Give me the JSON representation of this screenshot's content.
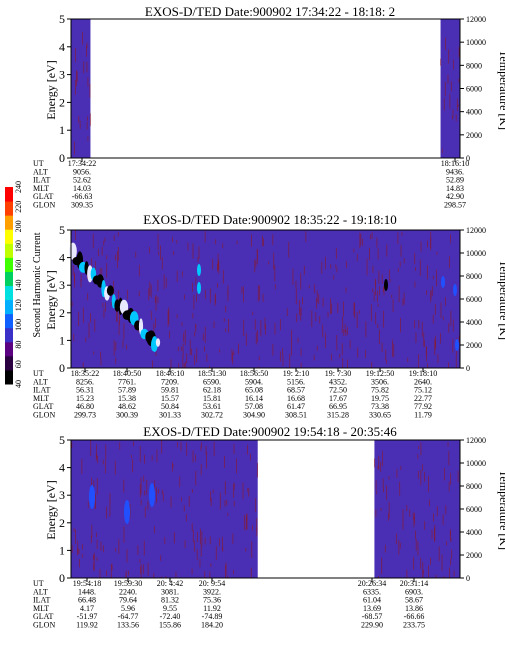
{
  "colors": {
    "background": "#4a2fb4",
    "noise": "#8b1a2a",
    "axis": "#000000",
    "frame_text": "#000000"
  },
  "colorbar": {
    "label": "Second Harmonic Current",
    "ticks": [
      "40",
      "60",
      "80",
      "100",
      "120",
      "140",
      "160",
      "180",
      "200",
      "220",
      "240"
    ],
    "colors": [
      "#000000",
      "#2a0040",
      "#5a0080",
      "#3a30c8",
      "#1060ff",
      "#00b0ff",
      "#00e0e0",
      "#00d060",
      "#40ff00",
      "#c0ff00",
      "#ffff00",
      "#ffa000",
      "#ff4000",
      "#ff0000"
    ]
  },
  "rowlabels": [
    "UT",
    "ALT",
    "ILAT",
    "MLT",
    "GLAT",
    "GLON"
  ],
  "chart_data": [
    {
      "type": "heatmap",
      "title": "EXOS-D/TED   Date:900902  17:34:22 - 18:18: 2",
      "ylabel": "Energy [eV]",
      "ylabel2": "Temperature [K]",
      "ylim": [
        0,
        5
      ],
      "yticks": [
        "0",
        "1",
        "2",
        "3",
        "4",
        "5"
      ],
      "y2lim": [
        0,
        12000
      ],
      "y2ticks": [
        "0",
        "2000",
        "4000",
        "6000",
        "8000",
        "10000",
        "12000"
      ],
      "data_segments": [
        [
          0,
          0.05
        ],
        [
          0.95,
          1.0
        ]
      ],
      "ephemeris": [
        {
          "UT": "17:34:22",
          "ALT": "9056.",
          "ILAT": "52.62",
          "MLT": "14.03",
          "GLAT": "-66.63",
          "GLON": "309.35"
        },
        {
          "UT": "18:16:10",
          "ALT": "9436.",
          "ILAT": "52.89",
          "MLT": "14.83",
          "GLAT": "42.90",
          "GLON": "298.57"
        }
      ]
    },
    {
      "type": "heatmap",
      "title": "EXOS-D/TED   Date:900902  18:35:22 - 19:18:10",
      "ylabel": "Energy [eV]",
      "ylabel2": "Temperature [K]",
      "ylim": [
        0,
        5
      ],
      "yticks": [
        "0",
        "1",
        "2",
        "3",
        "4",
        "5"
      ],
      "y2lim": [
        0,
        12000
      ],
      "y2ticks": [
        "0",
        "2000",
        "4000",
        "6000",
        "8000",
        "10000",
        "12000"
      ],
      "data_segments": [
        [
          0,
          1.0
        ]
      ],
      "ephemeris": [
        {
          "UT": "18:35:22",
          "ALT": "8256.",
          "ILAT": "56.31",
          "MLT": "15.23",
          "GLAT": "46.80",
          "GLON": "299.73"
        },
        {
          "UT": "18:40:50",
          "ALT": "7761.",
          "ILAT": "57.89",
          "MLT": "15.38",
          "GLAT": "48.62",
          "GLON": "300.39"
        },
        {
          "UT": "18:46:10",
          "ALT": "7209.",
          "ILAT": "59.81",
          "MLT": "15.57",
          "GLAT": "50.84",
          "GLON": "301.33"
        },
        {
          "UT": "18:51:30",
          "ALT": "6590.",
          "ILAT": "62.18",
          "MLT": "15.81",
          "GLAT": "53.61",
          "GLON": "302.72"
        },
        {
          "UT": "18:56:50",
          "ALT": "5904.",
          "ILAT": "65.08",
          "MLT": "16.14",
          "GLAT": "57.08",
          "GLON": "304.90"
        },
        {
          "UT": "19: 2:10",
          "ALT": "5156.",
          "ILAT": "68.57",
          "MLT": "16.68",
          "GLAT": "61.47",
          "GLON": "308.51"
        },
        {
          "UT": "19: 7:30",
          "ALT": "4352.",
          "ILAT": "72.50",
          "MLT": "17.67",
          "GLAT": "66.95",
          "GLON": "315.28"
        },
        {
          "UT": "19:12:50",
          "ALT": "3506.",
          "ILAT": "75.82",
          "MLT": "19.75",
          "GLAT": "73.38",
          "GLON": "330.65"
        },
        {
          "UT": "19:18:10",
          "ALT": "2640.",
          "ILAT": "75.12",
          "MLT": "22.77",
          "GLAT": "77.92",
          "GLON": "11.79"
        }
      ]
    },
    {
      "type": "heatmap",
      "title": "EXOS-D/TED   Date:900902  19:54:18 - 20:35:46",
      "ylabel": "Energy [eV]",
      "ylabel2": "Temperature [K]",
      "ylim": [
        0,
        5
      ],
      "yticks": [
        "0",
        "1",
        "2",
        "3",
        "4",
        "5"
      ],
      "y2lim": [
        0,
        12000
      ],
      "y2ticks": [
        "0",
        "2000",
        "4000",
        "6000",
        "8000",
        "10000",
        "12000"
      ],
      "data_segments": [
        [
          0,
          0.48
        ],
        [
          0.78,
          1.0
        ]
      ],
      "ephemeris": [
        {
          "UT": "19:54:18",
          "ALT": "1448.",
          "ILAT": "66.48",
          "MLT": "4.17",
          "GLAT": "-51.97",
          "GLON": "119.92"
        },
        {
          "UT": "19:59:30",
          "ALT": "2240.",
          "ILAT": "79.64",
          "MLT": "5.96",
          "GLAT": "-64.77",
          "GLON": "133.56"
        },
        {
          "UT": "20: 4:42",
          "ALT": "3081.",
          "ILAT": "81.32",
          "MLT": "9.55",
          "GLAT": "-72.40",
          "GLON": "155.86"
        },
        {
          "UT": "20: 9:54",
          "ALT": "3922.",
          "ILAT": "75.36",
          "MLT": "11.92",
          "GLAT": "-74.89",
          "GLON": "184.20"
        },
        {
          "UT": "20:26:34",
          "ALT": "6335.",
          "ILAT": "61.04",
          "MLT": "13.69",
          "GLAT": "-68.57",
          "GLON": "229.90"
        },
        {
          "UT": "20:31:14",
          "ALT": "6903.",
          "ILAT": "58.67",
          "MLT": "13.86",
          "GLAT": "-66.66",
          "GLON": "233.75"
        }
      ]
    }
  ]
}
